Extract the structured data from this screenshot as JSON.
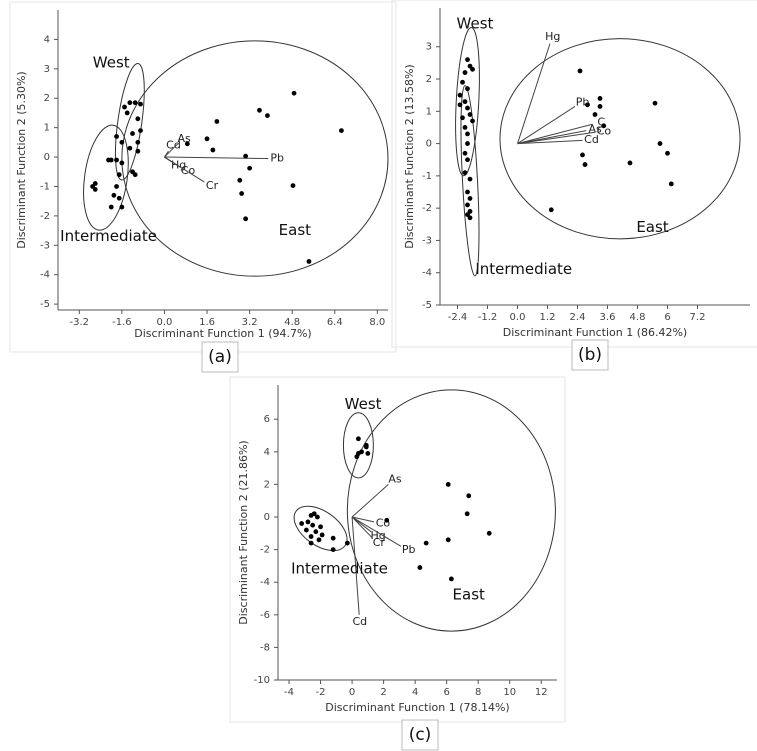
{
  "chart_data": [
    {
      "type": "scatter",
      "caption": "(a)",
      "x_label": "Discriminant Function 1 (94.7%)",
      "y_label": "Discriminant Function 2 (5.30%)",
      "xlim": [
        -4,
        8.4
      ],
      "ylim": [
        -5.2,
        5
      ],
      "xticks": [
        -3.2,
        -1.6,
        {
          "value": 0,
          "label": "0.0"
        },
        1.6,
        3.2,
        4.8,
        6.4,
        {
          "value": 8,
          "label": "8.0"
        }
      ],
      "yticks": [
        -5,
        -4,
        -3,
        -2,
        -1,
        0,
        1,
        2,
        3,
        4
      ],
      "x": [
        4.87,
        3.57,
        3.87,
        6.65,
        1.97,
        1.6,
        1.82,
        3.05,
        3.2,
        2.83,
        2.9,
        4.83,
        3.05,
        5.43,
        0.86,
        -1.5,
        -1.3,
        -1.1,
        -0.9,
        -1.4,
        -1.0,
        -0.9,
        -1.2,
        -1.0,
        -1.3,
        -1.0,
        -1.2,
        -1.1,
        -1.8,
        -1.6,
        -2.1,
        -2.0,
        -1.8,
        -1.6,
        -1.7,
        -2.6,
        -2.7,
        -2.6,
        -1.8,
        -1.9,
        -1.7,
        -2.0,
        -1.6
      ],
      "y": [
        2.17,
        1.59,
        1.41,
        0.9,
        1.21,
        0.62,
        0.24,
        0.03,
        -0.38,
        -0.79,
        -1.24,
        -0.97,
        -2.1,
        -3.55,
        0.45,
        1.7,
        1.85,
        1.85,
        1.8,
        1.5,
        1.3,
        0.9,
        0.8,
        0.5,
        0.3,
        0.2,
        -0.5,
        -0.6,
        0.7,
        0.5,
        -0.1,
        -0.1,
        -0.1,
        -0.2,
        -0.6,
        -0.9,
        -1.0,
        -1.1,
        -1.0,
        -1.3,
        -1.4,
        -1.7,
        -1.7
      ],
      "vectors": [
        {
          "name": "Cd",
          "x": 0.15,
          "y": 0.2
        },
        {
          "name": "As",
          "x": 0.5,
          "y": 0.45
        },
        {
          "name": "Hg",
          "x": 0.25,
          "y": -0.15
        },
        {
          "name": "Co",
          "x": 0.6,
          "y": -0.35
        },
        {
          "name": "Cr",
          "x": 1.5,
          "y": -0.85
        },
        {
          "name": "Pb",
          "x": 3.9,
          "y": -0.05
        }
      ],
      "ellipses": [
        {
          "cx": -1.3,
          "cy": 1.2,
          "rx": 0.45,
          "ry": 2.0,
          "angle": -8
        },
        {
          "cx": -2.2,
          "cy": -0.7,
          "rx": 0.8,
          "ry": 1.8,
          "angle": -8
        },
        {
          "cx": 3.4,
          "cy": -0.05,
          "rx": 5.0,
          "ry": 4.0,
          "angle": 0
        }
      ],
      "annotations": [
        {
          "text": "West",
          "x": -2.0,
          "y": 3.2
        },
        {
          "text": "Intermediate",
          "x": -2.1,
          "y": -2.7
        },
        {
          "text": "East",
          "x": 4.9,
          "y": -2.5
        }
      ]
    },
    {
      "type": "scatter",
      "caption": "(b)",
      "x_label": "Discriminant Function 1 (86.42%)",
      "y_label": "Discriminant Function 2 (13.58%)",
      "xlim": [
        -3.1,
        9.3
      ],
      "ylim": [
        -5,
        4.2
      ],
      "xticks": [
        -2.4,
        -1.2,
        {
          "value": 0,
          "label": "0.0"
        },
        1.2,
        2.4,
        3.6,
        4.8,
        6.0,
        7.2
      ],
      "yticks": [
        -5,
        -4,
        -3,
        -2,
        -1,
        0,
        1,
        2,
        3
      ],
      "x": [
        -2.0,
        -1.9,
        -1.8,
        -2.1,
        -2.2,
        -2.0,
        -2.3,
        -2.1,
        -2.3,
        -2.0,
        -1.9,
        -2.2,
        -1.8,
        -2.1,
        -2.0,
        -2.1,
        -2.0,
        -2.1,
        -1.9,
        -2.0,
        -1.9,
        -2.0,
        -1.9,
        -2.0,
        -1.9,
        -2.0,
        2.5,
        2.8,
        3.3,
        3.3,
        3.1,
        3.45,
        2.6,
        2.7,
        5.5,
        5.7,
        6.0,
        6.15,
        4.5,
        1.35
      ],
      "y": [
        2.6,
        2.4,
        2.3,
        2.2,
        1.9,
        1.7,
        1.5,
        1.3,
        1.2,
        1.1,
        0.9,
        0.8,
        0.7,
        0.5,
        0.3,
        -0.3,
        -0.5,
        -0.9,
        -1.1,
        -1.5,
        -1.7,
        -1.9,
        -2.1,
        -2.2,
        -2.3,
        0.0,
        2.25,
        1.2,
        1.4,
        1.15,
        0.9,
        0.55,
        -0.35,
        -0.65,
        1.25,
        0.0,
        -0.3,
        -1.25,
        -0.6,
        -2.05
      ],
      "vectors": [
        {
          "name": "Hg",
          "x": 1.3,
          "y": 3.1
        },
        {
          "name": "Pb",
          "x": 2.3,
          "y": 1.15
        },
        {
          "name": "C",
          "x": 3.0,
          "y": 0.6
        },
        {
          "name": "As",
          "x": 2.75,
          "y": 0.4
        },
        {
          "name": "Co",
          "x": 3.1,
          "y": 0.35
        },
        {
          "name": "Cd",
          "x": 2.6,
          "y": 0.1
        }
      ],
      "ellipses": [
        {
          "cx": -2.0,
          "cy": 1.3,
          "rx": 0.45,
          "ry": 2.3,
          "angle": -3
        },
        {
          "cx": -1.9,
          "cy": -1.15,
          "rx": 0.3,
          "ry": 2.95,
          "angle": 3
        },
        {
          "cx": 4.1,
          "cy": 0.15,
          "rx": 4.8,
          "ry": 3.1,
          "angle": 0
        }
      ],
      "annotations": [
        {
          "text": "West",
          "x": -1.7,
          "y": 3.7
        },
        {
          "text": "Intermediate",
          "x": 0.25,
          "y": -3.9
        },
        {
          "text": "East",
          "x": 5.4,
          "y": -2.6
        }
      ]
    },
    {
      "type": "scatter",
      "caption": "(c)",
      "x_label": "Discriminant Function 1 (78.14%)",
      "y_label": "Discriminant Function 2 (21.86%)",
      "xlim": [
        -4.7,
        13
      ],
      "ylim": [
        -10,
        8.1
      ],
      "xticks": [
        -4,
        -2,
        0,
        2,
        4,
        6,
        8,
        10,
        12
      ],
      "yticks": [
        -10,
        -8,
        -6,
        -4,
        -2,
        0,
        2,
        4,
        6
      ],
      "x": [
        0.4,
        0.9,
        0.9,
        0.6,
        1.0,
        0.3,
        0.4,
        -3.2,
        -2.6,
        -2.4,
        -2.2,
        -2.8,
        -2.5,
        -2.0,
        -2.9,
        -2.3,
        -1.9,
        -2.6,
        -2.1,
        -1.2,
        -0.3,
        -1.2,
        -2.6,
        6.1,
        7.4,
        7.3,
        8.7,
        2.2,
        6.1,
        4.7,
        4.3,
        6.3
      ],
      "y": [
        4.8,
        4.4,
        4.3,
        4.0,
        3.9,
        3.7,
        3.9,
        -0.4,
        0.1,
        0.2,
        0.0,
        -0.3,
        -0.5,
        -0.6,
        -0.8,
        -0.9,
        -1.1,
        -1.2,
        -1.4,
        -1.3,
        -1.6,
        -2.0,
        -1.6,
        2.0,
        1.3,
        0.2,
        -1.0,
        -0.2,
        -1.4,
        -1.6,
        -3.1,
        -3.8
      ],
      "vectors": [
        {
          "name": "As",
          "x": 2.3,
          "y": 2.0
        },
        {
          "name": "Co",
          "x": 1.4,
          "y": -0.3
        },
        {
          "name": "Hg",
          "x": 1.2,
          "y": -0.9
        },
        {
          "name": "Cr",
          "x": 1.3,
          "y": -1.3
        },
        {
          "name": "Pb",
          "x": 3.1,
          "y": -1.8
        },
        {
          "name": "Cd",
          "x": 0.45,
          "y": -6.0
        }
      ],
      "ellipses": [
        {
          "cx": 0.4,
          "cy": 4.4,
          "rx": 0.95,
          "ry": 2.0,
          "angle": 0
        },
        {
          "cx": -2.0,
          "cy": -0.7,
          "rx": 1.9,
          "ry": 1.05,
          "angle": -35
        },
        {
          "cx": 6.3,
          "cy": 0.4,
          "rx": 6.6,
          "ry": 7.4,
          "angle": 0
        }
      ],
      "annotations": [
        {
          "text": "West",
          "x": 0.7,
          "y": 6.9
        },
        {
          "text": "Intermediate",
          "x": -0.8,
          "y": -3.2
        },
        {
          "text": "East",
          "x": 7.4,
          "y": -4.8
        }
      ]
    }
  ]
}
